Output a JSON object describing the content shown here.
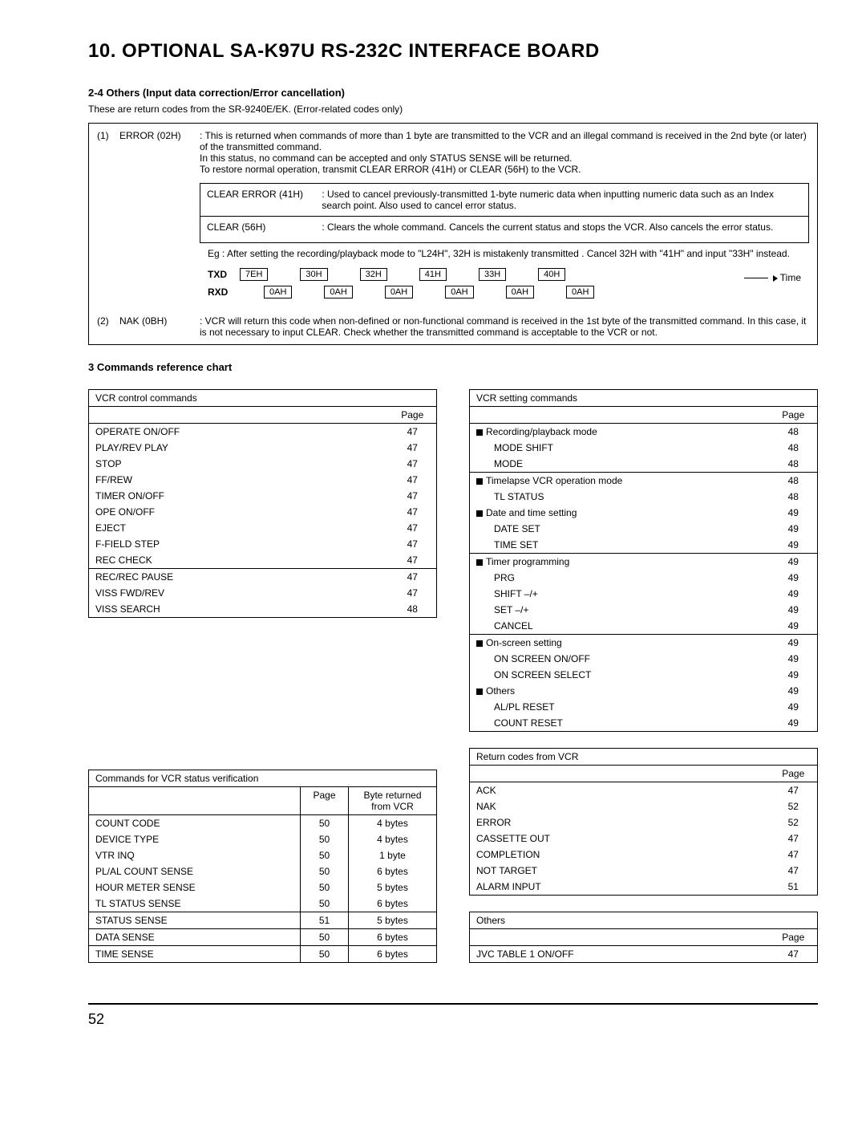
{
  "header": {
    "title": "10. OPTIONAL SA-K97U RS-232C INTERFACE BOARD"
  },
  "section24": {
    "title": "2-4 Others (Input data correction/Error cancellation)",
    "intro": "These are return codes from the SR-9240E/EK. (Error-related codes only)"
  },
  "error02h": {
    "num": "(1)",
    "code": "ERROR (02H)",
    "desc1": ": This is returned when commands of more than 1 byte are transmitted to the VCR and an illegal command is received in the 2nd byte (or later) of the transmitted command.",
    "desc2": "In this status, no command can be accepted and only STATUS SENSE will be returned.",
    "desc3": "To restore normal operation, transmit CLEAR ERROR (41H) or CLEAR (56H) to the VCR.",
    "clear_error_label": "CLEAR ERROR (41H)",
    "clear_error_desc": ": Used to cancel previously-transmitted 1-byte numeric data when inputting numeric data such as an Index search point. Also used to cancel error status.",
    "clear_label": "CLEAR (56H)",
    "clear_desc": ": Clears the whole command. Cancels the current status and stops the VCR. Also cancels the error status.",
    "eg_text": "Eg : After setting the recording/playback mode to \"L24H\", 32H is mistakenly transmitted . Cancel 32H with \"41H\" and input \"33H\" instead.",
    "txd_label": "TXD",
    "rxd_label": "RXD",
    "txd_values": [
      "7EH",
      "30H",
      "32H",
      "41H",
      "33H",
      "40H"
    ],
    "rxd_values": [
      "0AH",
      "0AH",
      "0AH",
      "0AH",
      "0AH",
      "0AH"
    ],
    "time_label": "Time"
  },
  "nak0bh": {
    "num": "(2)",
    "code": "NAK (0BH)",
    "desc": ": VCR will return this code when non-defined or non-functional command is received in the 1st byte of the transmitted command. In this case, it is not necessary to input CLEAR. Check whether the transmitted command is acceptable to the VCR or not."
  },
  "section3": {
    "title": "3 Commands reference chart"
  },
  "table_vcr_control": {
    "header": "VCR control commands",
    "page_label": "Page",
    "group1": [
      {
        "name": "OPERATE ON/OFF",
        "page": "47"
      },
      {
        "name": "PLAY/REV PLAY",
        "page": "47"
      },
      {
        "name": "STOP",
        "page": "47"
      },
      {
        "name": "FF/REW",
        "page": "47"
      },
      {
        "name": "TIMER ON/OFF",
        "page": "47"
      },
      {
        "name": "OPE ON/OFF",
        "page": "47"
      },
      {
        "name": "EJECT",
        "page": "47"
      },
      {
        "name": "F-FIELD STEP",
        "page": "47"
      },
      {
        "name": "REC CHECK",
        "page": "47"
      }
    ],
    "group2": [
      {
        "name": "REC/REC PAUSE",
        "page": "47"
      },
      {
        "name": "VISS FWD/REV",
        "page": "47"
      },
      {
        "name": "VISS SEARCH",
        "page": "48"
      }
    ]
  },
  "table_vcr_setting": {
    "header": "VCR setting commands",
    "page_label": "Page",
    "rows": [
      {
        "bullet": true,
        "name": "Recording/playback mode",
        "page": "48"
      },
      {
        "indent": true,
        "name": "MODE SHIFT",
        "page": "48"
      },
      {
        "indent": true,
        "name": "MODE",
        "page": "48"
      },
      {
        "sep": true,
        "bullet": true,
        "name": "Timelapse VCR operation mode",
        "page": "48"
      },
      {
        "indent": true,
        "name": "TL STATUS",
        "page": "48"
      },
      {
        "bullet": true,
        "name": "Date and time setting",
        "page": "49"
      },
      {
        "indent": true,
        "name": "DATE SET",
        "page": "49"
      },
      {
        "indent": true,
        "name": "TIME SET",
        "page": "49"
      },
      {
        "sep": true,
        "bullet": true,
        "name": "Timer programming",
        "page": "49"
      },
      {
        "indent": true,
        "name": "PRG",
        "page": "49"
      },
      {
        "indent": true,
        "name": "SHIFT –/+",
        "page": "49"
      },
      {
        "indent": true,
        "name": "SET –/+",
        "page": "49"
      },
      {
        "indent": true,
        "name": "CANCEL",
        "page": "49"
      },
      {
        "sep": true,
        "bullet": true,
        "name": "On-screen setting",
        "page": "49"
      },
      {
        "indent": true,
        "name": "ON SCREEN ON/OFF",
        "page": "49"
      },
      {
        "indent": true,
        "name": "ON SCREEN SELECT",
        "page": "49"
      },
      {
        "bullet": true,
        "name": "Others",
        "page": "49"
      },
      {
        "indent": true,
        "name": "AL/PL RESET",
        "page": "49"
      },
      {
        "indent": true,
        "name": "COUNT RESET",
        "page": "49"
      }
    ]
  },
  "table_status_verify": {
    "header": "Commands for VCR status verification",
    "page_label": "Page",
    "byte_label": "Byte returned from VCR",
    "group1": [
      {
        "name": "COUNT CODE",
        "page": "50",
        "bytes": "4 bytes"
      },
      {
        "name": "DEVICE TYPE",
        "page": "50",
        "bytes": "4 bytes"
      },
      {
        "name": "VTR INQ",
        "page": "50",
        "bytes": "1 byte"
      },
      {
        "name": "PL/AL COUNT SENSE",
        "page": "50",
        "bytes": "6 bytes"
      },
      {
        "name": "HOUR METER SENSE",
        "page": "50",
        "bytes": "5 bytes"
      },
      {
        "name": "TL STATUS SENSE",
        "page": "50",
        "bytes": "6 bytes"
      }
    ],
    "group2": [
      {
        "name": "STATUS SENSE",
        "page": "51",
        "bytes": "5 bytes"
      }
    ],
    "group3": [
      {
        "name": "DATA SENSE",
        "page": "50",
        "bytes": "6 bytes"
      }
    ],
    "group4": [
      {
        "name": "TIME SENSE",
        "page": "50",
        "bytes": "6 bytes"
      }
    ]
  },
  "table_return_codes": {
    "header": "Return codes from VCR",
    "page_label": "Page",
    "rows": [
      {
        "name": "ACK",
        "page": "47"
      },
      {
        "name": "NAK",
        "page": "52"
      },
      {
        "name": "ERROR",
        "page": "52"
      },
      {
        "name": "CASSETTE OUT",
        "page": "47"
      },
      {
        "name": "COMPLETION",
        "page": "47"
      },
      {
        "name": "NOT TARGET",
        "page": "47"
      },
      {
        "name": "ALARM INPUT",
        "page": "51"
      }
    ]
  },
  "table_others": {
    "header": "Others",
    "page_label": "Page",
    "rows": [
      {
        "name": "JVC TABLE 1 ON/OFF",
        "page": "47"
      }
    ]
  },
  "footer": {
    "pagenum": "52"
  }
}
